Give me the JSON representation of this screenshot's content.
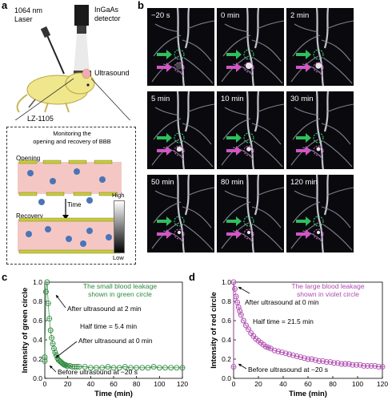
{
  "panel_a": {
    "letter": "a",
    "laser_label": "1064 nm\nLaser",
    "detector_label": "InGaAs\ndetector",
    "ultrasound_label": "Ultrasound",
    "agent_label": "LZ-1105",
    "box_title": "Monitoring the\nopening and recovery of BBB",
    "opening_label": "Opening",
    "time_label": "Time",
    "recovery_label": "Recovery",
    "colorbar_high": "High",
    "colorbar_low": "Low"
  },
  "panel_b": {
    "letter": "b",
    "timepoints": [
      "−20 s",
      "0 min",
      "2 min",
      "5 min",
      "10 min",
      "30 min",
      "50 min",
      "80 min",
      "120 min"
    ]
  },
  "panel_c": {
    "letter": "c",
    "annotation_title": "The small blood leakage\nshown in green circle",
    "ann_after2": "After ultrasound at 2 min",
    "ann_half": "Half time = 5.4 min",
    "ann_after0": "After ultrasound at 0 min",
    "ann_before": "Before ultrasound at −20 s",
    "color": "#2e8b3e"
  },
  "panel_d": {
    "letter": "d",
    "annotation_title": "The large blood leakage\nshown in violet circle",
    "ann_after0": "After ultrasound at 0 min",
    "ann_half": "Half time = 21.5 min",
    "ann_before": "Before ultrasound at −20 s",
    "color": "#b04cb0"
  },
  "chart_data": [
    {
      "type": "scatter",
      "ylabel": "Intensity of green circle",
      "xlabel": "Time (min)",
      "xlim": [
        0,
        120
      ],
      "ylim": [
        0,
        1.0
      ],
      "xticks": [
        "0",
        "20",
        "40",
        "60",
        "80",
        "100",
        "120"
      ],
      "yticks": [
        "0.0",
        "0.2",
        "0.4",
        "0.6",
        "0.8",
        "1.0"
      ],
      "x": [
        -0.33,
        0,
        1,
        2,
        3,
        4,
        5,
        6,
        7,
        8,
        9,
        10,
        11,
        12,
        13,
        14,
        15,
        16,
        17,
        18,
        19,
        20,
        22,
        24,
        26,
        28,
        30,
        35,
        40,
        45,
        50,
        55,
        60,
        65,
        70,
        75,
        80,
        85,
        90,
        95,
        100,
        105,
        110,
        115,
        120
      ],
      "y": [
        0.18,
        0.22,
        0.9,
        1.0,
        0.78,
        0.62,
        0.5,
        0.42,
        0.36,
        0.31,
        0.27,
        0.24,
        0.21,
        0.19,
        0.18,
        0.17,
        0.16,
        0.15,
        0.14,
        0.14,
        0.13,
        0.13,
        0.13,
        0.12,
        0.12,
        0.12,
        0.12,
        0.12,
        0.11,
        0.11,
        0.11,
        0.12,
        0.11,
        0.11,
        0.12,
        0.11,
        0.11,
        0.11,
        0.11,
        0.12,
        0.11,
        0.11,
        0.11,
        0.11,
        0.11
      ]
    },
    {
      "type": "scatter",
      "ylabel": "Intensity of red circle",
      "xlabel": "Time (min)",
      "xlim": [
        0,
        120
      ],
      "ylim": [
        0,
        1.0
      ],
      "xticks": [
        "0",
        "20",
        "40",
        "60",
        "80",
        "100",
        "120"
      ],
      "yticks": [
        "0.0",
        "0.2",
        "0.4",
        "0.6",
        "0.8",
        "1.0"
      ],
      "x": [
        -0.33,
        0,
        1,
        2,
        3,
        4,
        5,
        6,
        8,
        10,
        12,
        14,
        16,
        18,
        20,
        22,
        24,
        26,
        28,
        30,
        33,
        36,
        39,
        42,
        45,
        48,
        51,
        54,
        57,
        60,
        63,
        66,
        69,
        72,
        75,
        78,
        81,
        84,
        87,
        90,
        93,
        96,
        99,
        102,
        105,
        108,
        111,
        114,
        117,
        120
      ],
      "y": [
        0.12,
        1.0,
        0.93,
        0.85,
        0.79,
        0.74,
        0.7,
        0.66,
        0.6,
        0.55,
        0.51,
        0.47,
        0.44,
        0.41,
        0.39,
        0.37,
        0.35,
        0.33,
        0.32,
        0.31,
        0.29,
        0.28,
        0.27,
        0.26,
        0.25,
        0.24,
        0.23,
        0.22,
        0.21,
        0.2,
        0.2,
        0.19,
        0.18,
        0.18,
        0.17,
        0.17,
        0.16,
        0.16,
        0.15,
        0.15,
        0.15,
        0.14,
        0.14,
        0.14,
        0.13,
        0.13,
        0.13,
        0.13,
        0.12,
        0.12
      ]
    }
  ]
}
